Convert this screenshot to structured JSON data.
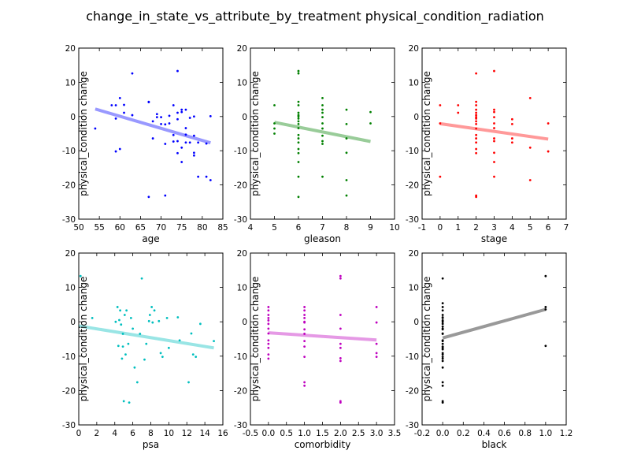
{
  "title": "change_in_state_vs_attribute_by_treatment physical_condition_radiation",
  "chart_data": [
    {
      "type": "scatter",
      "name": "age",
      "xlabel": "age",
      "ylabel": "physical_condition change",
      "color": "#0000ff",
      "line_color": "#9999ff",
      "xlim": [
        50,
        85
      ],
      "ylim": [
        -30,
        20
      ],
      "xticks": [
        50,
        55,
        60,
        65,
        70,
        75,
        80,
        85
      ],
      "yticks": [
        -30,
        -20,
        -10,
        0,
        10,
        20
      ],
      "trend": [
        [
          54,
          2.2
        ],
        [
          82,
          -7.7
        ]
      ],
      "points": [
        [
          54,
          -3.5
        ],
        [
          58,
          3.3
        ],
        [
          59,
          -0.6
        ],
        [
          59,
          3.3
        ],
        [
          59,
          -10.2
        ],
        [
          60,
          5.4
        ],
        [
          60,
          -9.5
        ],
        [
          61,
          3.4
        ],
        [
          61,
          1.1
        ],
        [
          63,
          12.6
        ],
        [
          63,
          0.4
        ],
        [
          67,
          4.3
        ],
        [
          67,
          4.2
        ],
        [
          67,
          -23.5
        ],
        [
          68,
          -1.4
        ],
        [
          68,
          -6.4
        ],
        [
          69,
          0.7
        ],
        [
          69,
          -0.2
        ],
        [
          70,
          -2.2
        ],
        [
          70,
          -0.2
        ],
        [
          71,
          -23.1
        ],
        [
          71,
          -2.3
        ],
        [
          71,
          -8.0
        ],
        [
          72,
          -2.0
        ],
        [
          72,
          0.2
        ],
        [
          73,
          3.3
        ],
        [
          73,
          -7.3
        ],
        [
          73,
          -5.4
        ],
        [
          74,
          13.3
        ],
        [
          74,
          1.1
        ],
        [
          74,
          -0.8
        ],
        [
          74,
          -7.2
        ],
        [
          74,
          -10.7
        ],
        [
          75,
          2.0
        ],
        [
          75,
          1.3
        ],
        [
          75,
          -13.3
        ],
        [
          75,
          -9.1
        ],
        [
          76,
          -3.4
        ],
        [
          76,
          -5.3
        ],
        [
          76,
          -7.6
        ],
        [
          76,
          2.0
        ],
        [
          77,
          -0.4
        ],
        [
          77,
          -7.6
        ],
        [
          78,
          -5.6
        ],
        [
          78,
          -10.6
        ],
        [
          78,
          -11.4
        ],
        [
          78,
          0.0
        ],
        [
          79,
          -17.6
        ],
        [
          79,
          -7.6
        ],
        [
          81,
          -7.9
        ],
        [
          81,
          -17.6
        ],
        [
          82,
          -18.6
        ],
        [
          82,
          0.1
        ]
      ]
    },
    {
      "type": "scatter",
      "name": "gleason",
      "xlabel": "gleason",
      "ylabel": "physical_condition change",
      "color": "#008000",
      "line_color": "#99cc99",
      "xlim": [
        4,
        10
      ],
      "ylim": [
        -30,
        20
      ],
      "xticks": [
        4,
        5,
        6,
        7,
        8,
        9,
        10
      ],
      "yticks": [
        -30,
        -20,
        -10,
        0,
        10,
        20
      ],
      "trend": [
        [
          5,
          -1.7
        ],
        [
          9,
          -7.3
        ]
      ],
      "points": [
        [
          5,
          3.3
        ],
        [
          5,
          -2.0
        ],
        [
          5,
          -3.5
        ],
        [
          5,
          -5.0
        ],
        [
          6,
          13.3
        ],
        [
          6,
          12.6
        ],
        [
          6,
          4.3
        ],
        [
          6,
          3.3
        ],
        [
          6,
          1.1
        ],
        [
          6,
          0.4
        ],
        [
          6,
          0.0
        ],
        [
          6,
          -0.6
        ],
        [
          6,
          -1.4
        ],
        [
          6,
          -2.2
        ],
        [
          6,
          -3.4
        ],
        [
          6,
          -5.4
        ],
        [
          6,
          -6.4
        ],
        [
          6,
          -7.6
        ],
        [
          6,
          -9.5
        ],
        [
          6,
          -10.7
        ],
        [
          6,
          -13.3
        ],
        [
          6,
          -17.6
        ],
        [
          6,
          -23.5
        ],
        [
          7,
          5.4
        ],
        [
          7,
          3.3
        ],
        [
          7,
          2.0
        ],
        [
          7,
          1.1
        ],
        [
          7,
          -0.2
        ],
        [
          7,
          -2.0
        ],
        [
          7,
          -3.5
        ],
        [
          7,
          -5.6
        ],
        [
          7,
          -7.2
        ],
        [
          7,
          -8.0
        ],
        [
          7,
          -17.6
        ],
        [
          8,
          2.0
        ],
        [
          8,
          -2.2
        ],
        [
          8,
          -6.4
        ],
        [
          8,
          -10.6
        ],
        [
          8,
          -18.6
        ],
        [
          8,
          -23.1
        ],
        [
          9,
          1.3
        ],
        [
          9,
          -2.0
        ]
      ]
    },
    {
      "type": "scatter",
      "name": "stage",
      "xlabel": "stage",
      "ylabel": "physical_condition change",
      "color": "#ff0000",
      "line_color": "#ff9999",
      "xlim": [
        -1,
        7
      ],
      "ylim": [
        -30,
        20
      ],
      "xticks": [
        -1,
        0,
        1,
        2,
        3,
        4,
        5,
        6,
        7
      ],
      "yticks": [
        -30,
        -20,
        -10,
        0,
        10,
        20
      ],
      "trend": [
        [
          0,
          -2.1
        ],
        [
          6,
          -6.6
        ]
      ],
      "points": [
        [
          0,
          3.3
        ],
        [
          0,
          -2.0
        ],
        [
          0,
          -17.6
        ],
        [
          1,
          3.3
        ],
        [
          1,
          1.1
        ],
        [
          2,
          12.6
        ],
        [
          2,
          4.3
        ],
        [
          2,
          3.3
        ],
        [
          2,
          2.0
        ],
        [
          2,
          1.1
        ],
        [
          2,
          0.4
        ],
        [
          2,
          -0.2
        ],
        [
          2,
          -0.6
        ],
        [
          2,
          -1.4
        ],
        [
          2,
          -2.2
        ],
        [
          2,
          -3.5
        ],
        [
          2,
          -5.4
        ],
        [
          2,
          -6.4
        ],
        [
          2,
          -7.6
        ],
        [
          2,
          -9.5
        ],
        [
          2,
          -10.7
        ],
        [
          2,
          -23.1
        ],
        [
          2,
          -23.5
        ],
        [
          3,
          13.3
        ],
        [
          3,
          2.0
        ],
        [
          3,
          1.3
        ],
        [
          3,
          -0.2
        ],
        [
          3,
          -2.0
        ],
        [
          3,
          -3.4
        ],
        [
          3,
          -6.4
        ],
        [
          3,
          -7.2
        ],
        [
          3,
          -10.6
        ],
        [
          3,
          -13.3
        ],
        [
          3,
          -17.6
        ],
        [
          4,
          -0.8
        ],
        [
          4,
          -2.2
        ],
        [
          4,
          -6.4
        ],
        [
          4,
          -7.6
        ],
        [
          5,
          5.4
        ],
        [
          5,
          -9.1
        ],
        [
          5,
          -18.6
        ],
        [
          6,
          -2.0
        ],
        [
          6,
          -10.2
        ]
      ]
    },
    {
      "type": "scatter",
      "name": "psa",
      "xlabel": "psa",
      "ylabel": "physical_condition change",
      "color": "#00bfbf",
      "line_color": "#99e5e5",
      "xlim": [
        0,
        16
      ],
      "ylim": [
        -30,
        20
      ],
      "xticks": [
        0,
        2,
        4,
        6,
        8,
        10,
        12,
        14,
        16
      ],
      "yticks": [
        -30,
        -20,
        -10,
        0,
        10,
        20
      ],
      "trend": [
        [
          0,
          -1.2
        ],
        [
          15,
          -7.6
        ]
      ],
      "points": [
        [
          0.2,
          13.3
        ],
        [
          1.5,
          1.1
        ],
        [
          4.1,
          0.0
        ],
        [
          4.3,
          4.3
        ],
        [
          4.4,
          -7.0
        ],
        [
          4.5,
          0.5
        ],
        [
          4.6,
          3.3
        ],
        [
          4.7,
          -0.8
        ],
        [
          4.8,
          -10.7
        ],
        [
          4.9,
          -3.5
        ],
        [
          4.9,
          -7.2
        ],
        [
          5.0,
          -23.1
        ],
        [
          5.1,
          2.0
        ],
        [
          5.2,
          -9.5
        ],
        [
          5.3,
          3.3
        ],
        [
          5.5,
          -6.4
        ],
        [
          5.6,
          -23.5
        ],
        [
          5.8,
          1.1
        ],
        [
          6.0,
          -2.0
        ],
        [
          6.2,
          -13.3
        ],
        [
          6.5,
          -17.6
        ],
        [
          6.8,
          -3.5
        ],
        [
          7.0,
          12.6
        ],
        [
          7.3,
          -11.0
        ],
        [
          7.5,
          -6.4
        ],
        [
          7.8,
          0.2
        ],
        [
          7.9,
          2.0
        ],
        [
          8.1,
          4.3
        ],
        [
          8.2,
          -0.2
        ],
        [
          8.4,
          3.3
        ],
        [
          8.9,
          0.2
        ],
        [
          9.1,
          -9.1
        ],
        [
          9.3,
          -10.2
        ],
        [
          9.8,
          1.1
        ],
        [
          10.0,
          -7.6
        ],
        [
          11.0,
          1.3
        ],
        [
          11.2,
          -5.4
        ],
        [
          12.2,
          -17.6
        ],
        [
          12.5,
          -3.4
        ],
        [
          12.7,
          -9.5
        ],
        [
          13.0,
          -10.2
        ],
        [
          13.5,
          -0.6
        ],
        [
          15.0,
          -5.6
        ]
      ]
    },
    {
      "type": "scatter",
      "name": "comorbidity",
      "xlabel": "comorbidity",
      "ylabel": "physical_condition change",
      "color": "#bf00bf",
      "line_color": "#e599e5",
      "xlim": [
        -0.5,
        3.5
      ],
      "ylim": [
        -30,
        20
      ],
      "xticks": [
        -0.5,
        0.0,
        0.5,
        1.0,
        1.5,
        2.0,
        2.5,
        3.0,
        3.5
      ],
      "yticks": [
        -30,
        -20,
        -10,
        0,
        10,
        20
      ],
      "trend": [
        [
          0,
          -3.2
        ],
        [
          3,
          -5.3
        ]
      ],
      "points": [
        [
          0,
          4.3
        ],
        [
          0,
          3.3
        ],
        [
          0,
          2.0
        ],
        [
          0,
          1.1
        ],
        [
          0,
          0.4
        ],
        [
          0,
          -0.6
        ],
        [
          0,
          -2.0
        ],
        [
          0,
          -3.4
        ],
        [
          0,
          -5.4
        ],
        [
          0,
          -6.4
        ],
        [
          0,
          -7.6
        ],
        [
          0,
          -9.5
        ],
        [
          0,
          -10.7
        ],
        [
          1,
          4.3
        ],
        [
          1,
          3.3
        ],
        [
          1,
          2.0
        ],
        [
          1,
          1.1
        ],
        [
          1,
          0.0
        ],
        [
          1,
          -0.2
        ],
        [
          1,
          -2.2
        ],
        [
          1,
          -3.5
        ],
        [
          1,
          -5.6
        ],
        [
          1,
          -7.2
        ],
        [
          1,
          -10.2
        ],
        [
          1,
          -17.6
        ],
        [
          1,
          -18.6
        ],
        [
          2,
          13.3
        ],
        [
          2,
          12.6
        ],
        [
          2,
          2.0
        ],
        [
          2,
          -2.0
        ],
        [
          2,
          -6.4
        ],
        [
          2,
          -7.6
        ],
        [
          2,
          -10.6
        ],
        [
          2,
          -11.4
        ],
        [
          2,
          -23.1
        ],
        [
          2,
          -23.5
        ],
        [
          3,
          4.3
        ],
        [
          3,
          -0.2
        ],
        [
          3,
          -6.4
        ],
        [
          3,
          -9.1
        ],
        [
          3,
          -10.2
        ]
      ]
    },
    {
      "type": "scatter",
      "name": "black",
      "xlabel": "black",
      "ylabel": "physical_condition change",
      "color": "#000000",
      "line_color": "#999999",
      "xlim": [
        -0.2,
        1.2
      ],
      "ylim": [
        -30,
        20
      ],
      "xticks": [
        -0.2,
        0.0,
        0.2,
        0.4,
        0.6,
        0.8,
        1.0,
        1.2
      ],
      "yticks": [
        -30,
        -20,
        -10,
        0,
        10,
        20
      ],
      "trend": [
        [
          0,
          -4.7
        ],
        [
          1,
          3.6
        ]
      ],
      "points": [
        [
          0,
          12.6
        ],
        [
          0,
          5.4
        ],
        [
          0,
          4.3
        ],
        [
          0,
          3.3
        ],
        [
          0,
          2.0
        ],
        [
          0,
          1.3
        ],
        [
          0,
          1.1
        ],
        [
          0,
          0.4
        ],
        [
          0,
          0.0
        ],
        [
          0,
          -0.6
        ],
        [
          0,
          -1.4
        ],
        [
          0,
          -2.0
        ],
        [
          0,
          -2.2
        ],
        [
          0,
          -3.4
        ],
        [
          0,
          -3.5
        ],
        [
          0,
          -5.4
        ],
        [
          0,
          -5.6
        ],
        [
          0,
          -6.4
        ],
        [
          0,
          -7.2
        ],
        [
          0,
          -7.6
        ],
        [
          0,
          -8.0
        ],
        [
          0,
          -9.1
        ],
        [
          0,
          -9.5
        ],
        [
          0,
          -10.2
        ],
        [
          0,
          -10.7
        ],
        [
          0,
          -11.4
        ],
        [
          0,
          -13.3
        ],
        [
          0,
          -17.6
        ],
        [
          0,
          -18.6
        ],
        [
          0,
          -23.1
        ],
        [
          0,
          -23.5
        ],
        [
          1,
          13.3
        ],
        [
          1,
          4.3
        ],
        [
          1,
          3.6
        ],
        [
          1,
          -7.0
        ]
      ]
    }
  ]
}
